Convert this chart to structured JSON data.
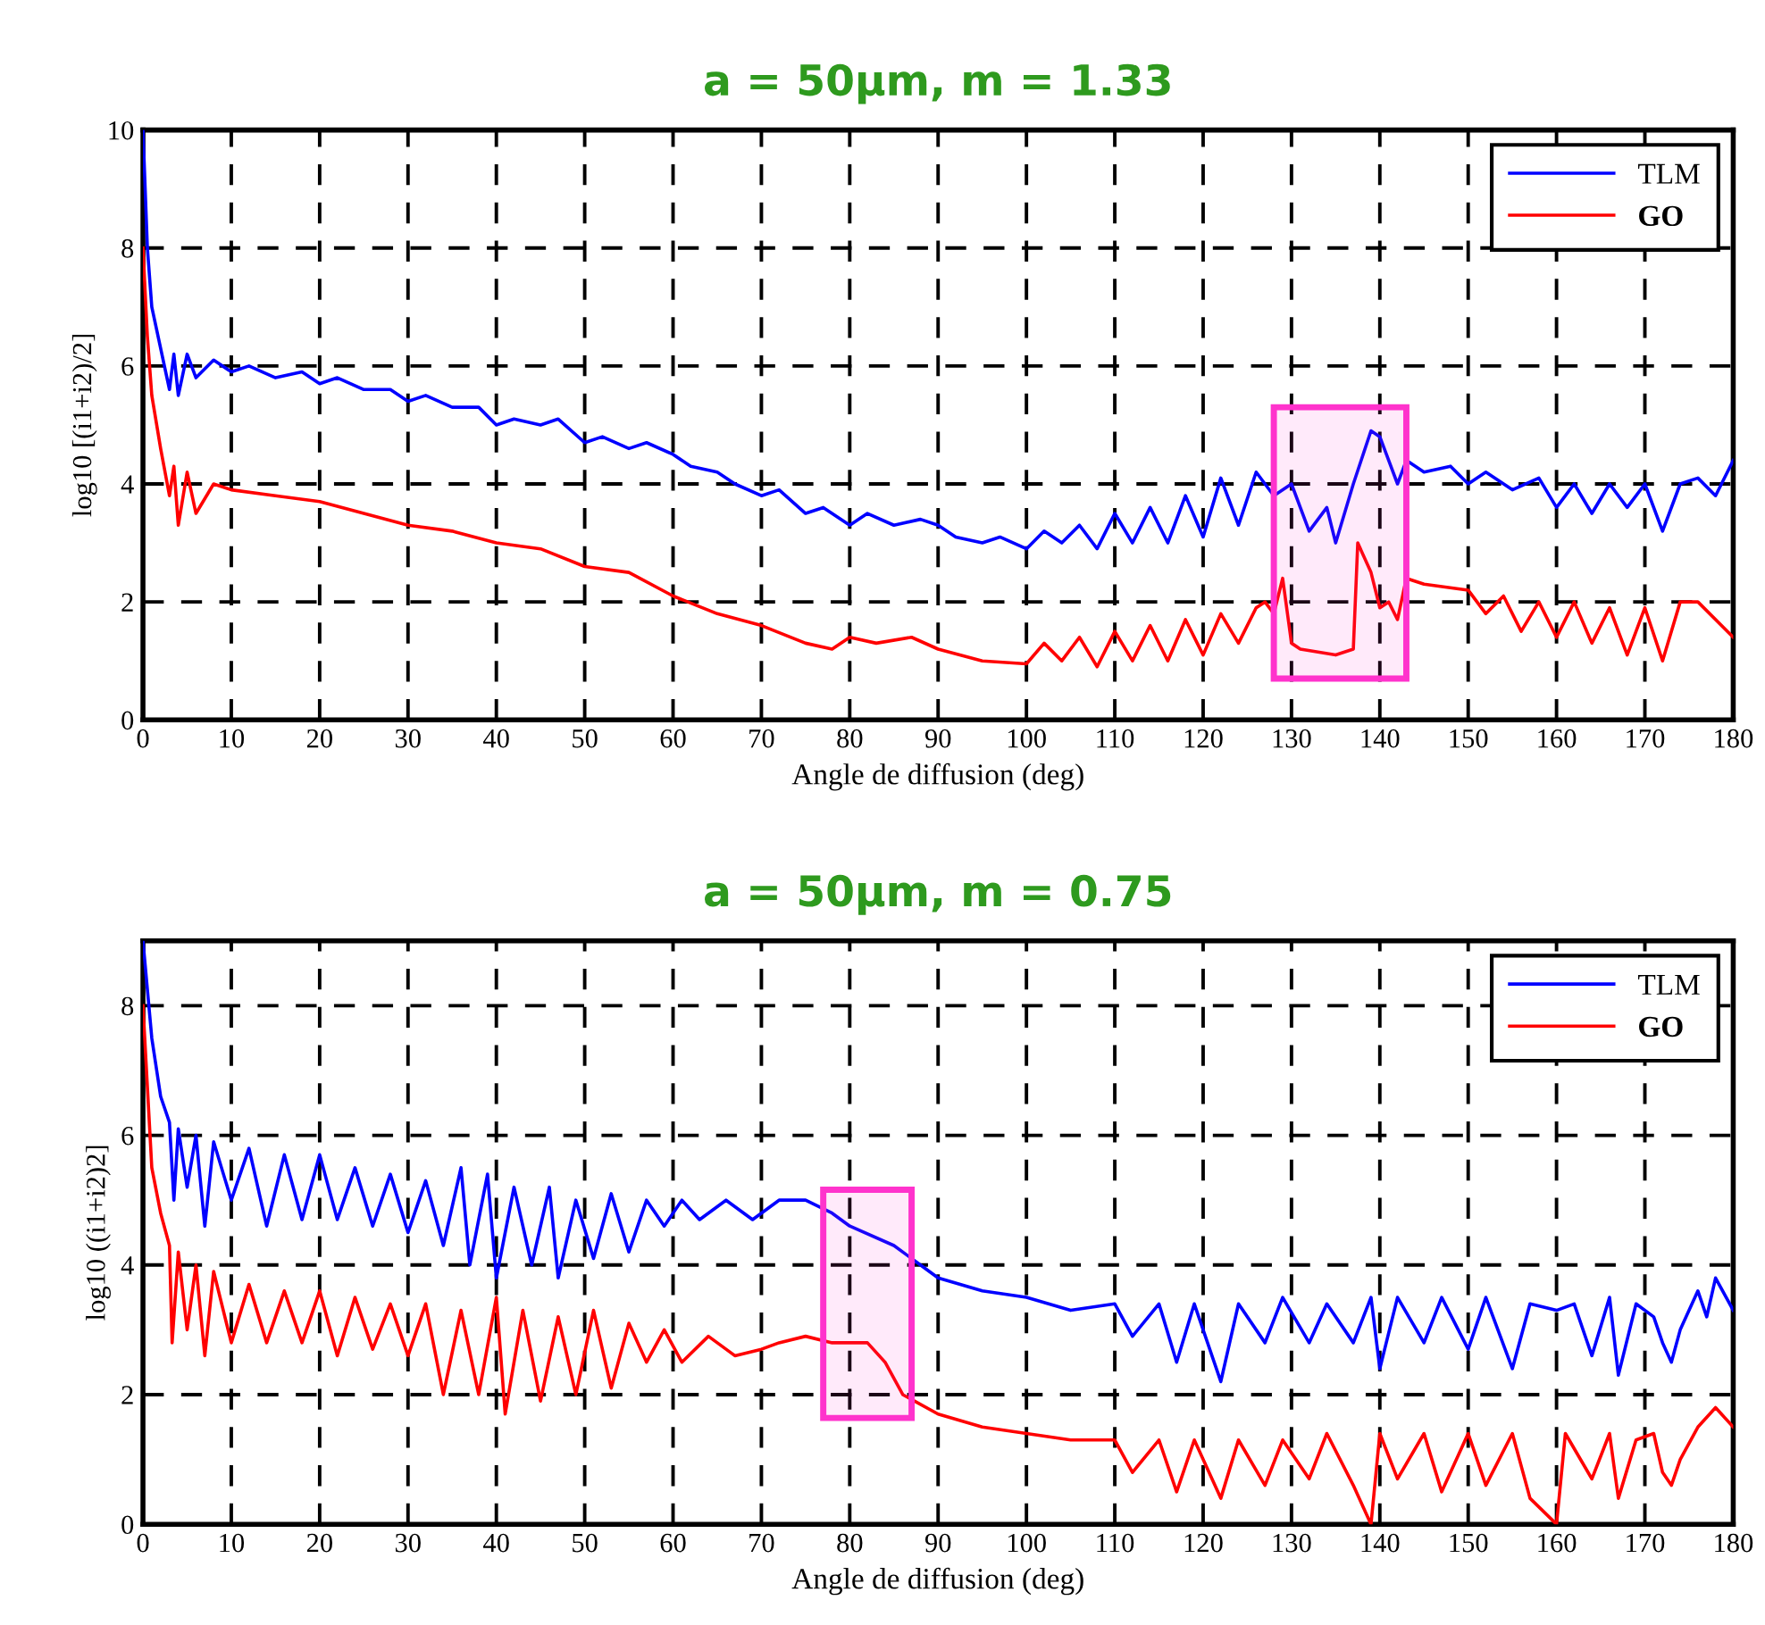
{
  "chart_data": [
    {
      "type": "line",
      "title": "a = 50μm, m = 1.33",
      "xlabel": "Angle de diffusion (deg)",
      "ylabel": "log10 [(i1+i2)/2]",
      "xlim": [
        0,
        180
      ],
      "xticks": [
        0,
        10,
        20,
        30,
        40,
        50,
        60,
        70,
        80,
        90,
        100,
        110,
        120,
        130,
        140,
        150,
        160,
        170,
        180
      ],
      "ylim": [
        0,
        10
      ],
      "yticks": [
        0,
        2,
        4,
        6,
        8,
        10
      ],
      "grid": true,
      "legend": "top right",
      "line_style": "solid",
      "series": [
        {
          "name": "TLM",
          "color": "#0000ff",
          "x": [
            0,
            0.5,
            1,
            2,
            3,
            3.5,
            4,
            5,
            6,
            8,
            10,
            12,
            15,
            18,
            20,
            22,
            25,
            28,
            30,
            32,
            35,
            38,
            40,
            42,
            45,
            47,
            50,
            52,
            55,
            57,
            60,
            62,
            65,
            67,
            70,
            72,
            75,
            77,
            80,
            82,
            85,
            88,
            90,
            92,
            95,
            97,
            100,
            102,
            104,
            106,
            108,
            110,
            112,
            114,
            116,
            118,
            120,
            122,
            124,
            126,
            128,
            130,
            132,
            134,
            135,
            137,
            139,
            140,
            142,
            143,
            145,
            148,
            150,
            152,
            155,
            158,
            160,
            162,
            164,
            166,
            168,
            170,
            172,
            174,
            176,
            178,
            180
          ],
          "values": [
            10,
            8,
            7,
            6.3,
            5.6,
            6.2,
            5.5,
            6.2,
            5.8,
            6.1,
            5.9,
            6.0,
            5.8,
            5.9,
            5.7,
            5.8,
            5.6,
            5.6,
            5.4,
            5.5,
            5.3,
            5.3,
            5.0,
            5.1,
            5.0,
            5.1,
            4.7,
            4.8,
            4.6,
            4.7,
            4.5,
            4.3,
            4.2,
            4.0,
            3.8,
            3.9,
            3.5,
            3.6,
            3.3,
            3.5,
            3.3,
            3.4,
            3.3,
            3.1,
            3.0,
            3.1,
            2.9,
            3.2,
            3.0,
            3.3,
            2.9,
            3.5,
            3.0,
            3.6,
            3.0,
            3.8,
            3.1,
            4.1,
            3.3,
            4.2,
            3.8,
            4.0,
            3.2,
            3.6,
            3.0,
            4.0,
            4.9,
            4.8,
            4.0,
            4.4,
            4.2,
            4.3,
            4.0,
            4.2,
            3.9,
            4.1,
            3.6,
            4.0,
            3.5,
            4.0,
            3.6,
            4.0,
            3.2,
            4.0,
            4.1,
            3.8,
            4.4
          ]
        },
        {
          "name": "GO",
          "color": "#ff0000",
          "x": [
            0,
            0.5,
            1,
            2,
            3,
            3.5,
            4,
            5,
            6,
            8,
            10,
            15,
            20,
            25,
            30,
            35,
            40,
            45,
            50,
            55,
            60,
            65,
            70,
            75,
            78,
            80,
            83,
            87,
            90,
            95,
            100,
            102,
            104,
            106,
            108,
            110,
            112,
            114,
            116,
            118,
            120,
            122,
            124,
            126,
            127,
            128,
            129,
            130,
            131,
            135,
            137,
            137.5,
            139,
            140,
            141,
            142,
            143,
            145,
            150,
            152,
            154,
            156,
            158,
            160,
            162,
            164,
            166,
            168,
            170,
            172,
            174,
            176,
            180
          ],
          "values": [
            8,
            6.5,
            5.5,
            4.6,
            3.8,
            4.3,
            3.3,
            4.2,
            3.5,
            4.0,
            3.9,
            3.8,
            3.7,
            3.5,
            3.3,
            3.2,
            3.0,
            2.9,
            2.6,
            2.5,
            2.1,
            1.8,
            1.6,
            1.3,
            1.2,
            1.4,
            1.3,
            1.4,
            1.2,
            1.0,
            0.95,
            1.3,
            1.0,
            1.4,
            0.9,
            1.5,
            1.0,
            1.6,
            1.0,
            1.7,
            1.1,
            1.8,
            1.3,
            1.9,
            2.0,
            1.8,
            2.4,
            1.3,
            1.2,
            1.1,
            1.2,
            3.0,
            2.5,
            1.9,
            2.0,
            1.7,
            2.4,
            2.3,
            2.2,
            1.8,
            2.1,
            1.5,
            2.0,
            1.4,
            2.0,
            1.3,
            1.9,
            1.1,
            1.9,
            1.0,
            2.0,
            2.0,
            1.4
          ]
        }
      ],
      "bands": [
        {
          "axis": "x",
          "from": 128,
          "to": 143,
          "color": "#ff33cc"
        }
      ]
    },
    {
      "type": "line",
      "title": "a = 50μm, m = 0.75",
      "xlabel": "Angle de diffusion (deg)",
      "ylabel": "log10 ((i1+i2)2]",
      "xlim": [
        0,
        180
      ],
      "xticks": [
        0,
        10,
        20,
        30,
        40,
        50,
        60,
        70,
        80,
        90,
        100,
        110,
        120,
        130,
        140,
        150,
        160,
        170,
        180
      ],
      "ylim": [
        0,
        9
      ],
      "yticks": [
        0,
        2,
        4,
        6,
        8
      ],
      "grid": true,
      "legend": "top right",
      "line_style": "solid",
      "series": [
        {
          "name": "TLM",
          "color": "#0000ff",
          "x": [
            0,
            1,
            2,
            3,
            3.5,
            4,
            5,
            6,
            7,
            8,
            10,
            12,
            14,
            16,
            18,
            20,
            22,
            24,
            26,
            28,
            30,
            32,
            34,
            36,
            37,
            39,
            40,
            42,
            44,
            46,
            47,
            49,
            51,
            53,
            55,
            57,
            59,
            61,
            63,
            66,
            69,
            72,
            75,
            78,
            80,
            85,
            88,
            90,
            95,
            100,
            105,
            110,
            112,
            115,
            117,
            119,
            122,
            124,
            127,
            129,
            132,
            134,
            137,
            139,
            140,
            142,
            145,
            147,
            150,
            152,
            155,
            157,
            160,
            162,
            164,
            166,
            167,
            169,
            171,
            172,
            173,
            174,
            176,
            177,
            178,
            180
          ],
          "values": [
            9,
            7.5,
            6.6,
            6.2,
            5.0,
            6.1,
            5.2,
            6.0,
            4.6,
            5.9,
            5.0,
            5.8,
            4.6,
            5.7,
            4.7,
            5.7,
            4.7,
            5.5,
            4.6,
            5.4,
            4.5,
            5.3,
            4.3,
            5.5,
            4.0,
            5.4,
            3.8,
            5.2,
            4.0,
            5.2,
            3.8,
            5.0,
            4.1,
            5.1,
            4.2,
            5.0,
            4.6,
            5.0,
            4.7,
            5.0,
            4.7,
            5.0,
            5.0,
            4.8,
            4.6,
            4.3,
            4.0,
            3.8,
            3.6,
            3.5,
            3.3,
            3.4,
            2.9,
            3.4,
            2.5,
            3.4,
            2.2,
            3.4,
            2.8,
            3.5,
            2.8,
            3.4,
            2.8,
            3.5,
            2.4,
            3.5,
            2.8,
            3.5,
            2.7,
            3.5,
            2.4,
            3.4,
            3.3,
            3.4,
            2.6,
            3.5,
            2.3,
            3.4,
            3.2,
            2.8,
            2.5,
            3.0,
            3.6,
            3.2,
            3.8,
            3.3
          ]
        },
        {
          "name": "GO",
          "color": "#ff0000",
          "x": [
            0,
            1,
            2,
            3,
            3.3,
            4,
            5,
            6,
            7,
            8,
            10,
            12,
            14,
            16,
            18,
            20,
            22,
            24,
            26,
            28,
            30,
            32,
            34,
            36,
            38,
            40,
            41,
            43,
            45,
            47,
            49,
            51,
            53,
            55,
            57,
            59,
            61,
            64,
            67,
            70,
            72,
            75,
            78,
            82,
            84,
            86,
            90,
            95,
            100,
            105,
            110,
            112,
            115,
            117,
            119,
            122,
            124,
            127,
            129,
            132,
            134,
            137,
            139,
            140,
            142,
            145,
            147,
            150,
            152,
            155,
            157,
            160,
            161,
            164,
            166,
            167,
            169,
            171,
            172,
            173,
            174,
            176,
            178,
            180
          ],
          "values": [
            8,
            5.5,
            4.8,
            4.3,
            2.8,
            4.2,
            3.0,
            4.0,
            2.6,
            3.9,
            2.8,
            3.7,
            2.8,
            3.6,
            2.8,
            3.6,
            2.6,
            3.5,
            2.7,
            3.4,
            2.6,
            3.4,
            2.0,
            3.3,
            2.0,
            3.5,
            1.7,
            3.3,
            1.9,
            3.2,
            2.0,
            3.3,
            2.1,
            3.1,
            2.5,
            3.0,
            2.5,
            2.9,
            2.6,
            2.7,
            2.8,
            2.9,
            2.8,
            2.8,
            2.5,
            2.0,
            1.7,
            1.5,
            1.4,
            1.3,
            1.3,
            0.8,
            1.3,
            0.5,
            1.3,
            0.4,
            1.3,
            0.6,
            1.3,
            0.7,
            1.4,
            0.6,
            0.0,
            1.4,
            0.7,
            1.4,
            0.5,
            1.4,
            0.6,
            1.4,
            0.4,
            0.0,
            1.4,
            0.7,
            1.4,
            0.4,
            1.3,
            1.4,
            0.8,
            0.6,
            1.0,
            1.5,
            1.8,
            1.5
          ]
        }
      ],
      "bands": [
        {
          "axis": "x",
          "from": 77,
          "to": 87,
          "color": "#ff33cc"
        }
      ]
    }
  ]
}
